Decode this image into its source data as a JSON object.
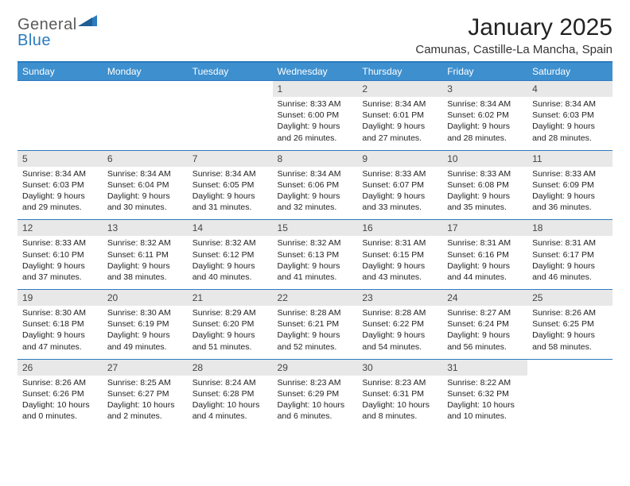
{
  "brand": {
    "part1": "General",
    "part2": "Blue"
  },
  "title": "January 2025",
  "location": "Camunas, Castille-La Mancha, Spain",
  "colors": {
    "header_bg": "#3d8fce",
    "header_text": "#ffffff",
    "rule": "#2b7bbf",
    "daynum_bg": "#e8e8e8",
    "body_bg": "#ffffff",
    "text": "#222222",
    "logo_gray": "#5a5a5a",
    "logo_blue": "#2b7bbf"
  },
  "typography": {
    "title_fontsize": 30,
    "location_fontsize": 15,
    "weekday_fontsize": 12,
    "daynum_fontsize": 12,
    "cell_fontsize": 10.5
  },
  "weekdays": [
    "Sunday",
    "Monday",
    "Tuesday",
    "Wednesday",
    "Thursday",
    "Friday",
    "Saturday"
  ],
  "weeks": [
    [
      null,
      null,
      null,
      {
        "n": "1",
        "sunrise": "8:33 AM",
        "sunset": "6:00 PM",
        "dayl": "9 hours and 26 minutes."
      },
      {
        "n": "2",
        "sunrise": "8:34 AM",
        "sunset": "6:01 PM",
        "dayl": "9 hours and 27 minutes."
      },
      {
        "n": "3",
        "sunrise": "8:34 AM",
        "sunset": "6:02 PM",
        "dayl": "9 hours and 28 minutes."
      },
      {
        "n": "4",
        "sunrise": "8:34 AM",
        "sunset": "6:03 PM",
        "dayl": "9 hours and 28 minutes."
      }
    ],
    [
      {
        "n": "5",
        "sunrise": "8:34 AM",
        "sunset": "6:03 PM",
        "dayl": "9 hours and 29 minutes."
      },
      {
        "n": "6",
        "sunrise": "8:34 AM",
        "sunset": "6:04 PM",
        "dayl": "9 hours and 30 minutes."
      },
      {
        "n": "7",
        "sunrise": "8:34 AM",
        "sunset": "6:05 PM",
        "dayl": "9 hours and 31 minutes."
      },
      {
        "n": "8",
        "sunrise": "8:34 AM",
        "sunset": "6:06 PM",
        "dayl": "9 hours and 32 minutes."
      },
      {
        "n": "9",
        "sunrise": "8:33 AM",
        "sunset": "6:07 PM",
        "dayl": "9 hours and 33 minutes."
      },
      {
        "n": "10",
        "sunrise": "8:33 AM",
        "sunset": "6:08 PM",
        "dayl": "9 hours and 35 minutes."
      },
      {
        "n": "11",
        "sunrise": "8:33 AM",
        "sunset": "6:09 PM",
        "dayl": "9 hours and 36 minutes."
      }
    ],
    [
      {
        "n": "12",
        "sunrise": "8:33 AM",
        "sunset": "6:10 PM",
        "dayl": "9 hours and 37 minutes."
      },
      {
        "n": "13",
        "sunrise": "8:32 AM",
        "sunset": "6:11 PM",
        "dayl": "9 hours and 38 minutes."
      },
      {
        "n": "14",
        "sunrise": "8:32 AM",
        "sunset": "6:12 PM",
        "dayl": "9 hours and 40 minutes."
      },
      {
        "n": "15",
        "sunrise": "8:32 AM",
        "sunset": "6:13 PM",
        "dayl": "9 hours and 41 minutes."
      },
      {
        "n": "16",
        "sunrise": "8:31 AM",
        "sunset": "6:15 PM",
        "dayl": "9 hours and 43 minutes."
      },
      {
        "n": "17",
        "sunrise": "8:31 AM",
        "sunset": "6:16 PM",
        "dayl": "9 hours and 44 minutes."
      },
      {
        "n": "18",
        "sunrise": "8:31 AM",
        "sunset": "6:17 PM",
        "dayl": "9 hours and 46 minutes."
      }
    ],
    [
      {
        "n": "19",
        "sunrise": "8:30 AM",
        "sunset": "6:18 PM",
        "dayl": "9 hours and 47 minutes."
      },
      {
        "n": "20",
        "sunrise": "8:30 AM",
        "sunset": "6:19 PM",
        "dayl": "9 hours and 49 minutes."
      },
      {
        "n": "21",
        "sunrise": "8:29 AM",
        "sunset": "6:20 PM",
        "dayl": "9 hours and 51 minutes."
      },
      {
        "n": "22",
        "sunrise": "8:28 AM",
        "sunset": "6:21 PM",
        "dayl": "9 hours and 52 minutes."
      },
      {
        "n": "23",
        "sunrise": "8:28 AM",
        "sunset": "6:22 PM",
        "dayl": "9 hours and 54 minutes."
      },
      {
        "n": "24",
        "sunrise": "8:27 AM",
        "sunset": "6:24 PM",
        "dayl": "9 hours and 56 minutes."
      },
      {
        "n": "25",
        "sunrise": "8:26 AM",
        "sunset": "6:25 PM",
        "dayl": "9 hours and 58 minutes."
      }
    ],
    [
      {
        "n": "26",
        "sunrise": "8:26 AM",
        "sunset": "6:26 PM",
        "dayl": "10 hours and 0 minutes."
      },
      {
        "n": "27",
        "sunrise": "8:25 AM",
        "sunset": "6:27 PM",
        "dayl": "10 hours and 2 minutes."
      },
      {
        "n": "28",
        "sunrise": "8:24 AM",
        "sunset": "6:28 PM",
        "dayl": "10 hours and 4 minutes."
      },
      {
        "n": "29",
        "sunrise": "8:23 AM",
        "sunset": "6:29 PM",
        "dayl": "10 hours and 6 minutes."
      },
      {
        "n": "30",
        "sunrise": "8:23 AM",
        "sunset": "6:31 PM",
        "dayl": "10 hours and 8 minutes."
      },
      {
        "n": "31",
        "sunrise": "8:22 AM",
        "sunset": "6:32 PM",
        "dayl": "10 hours and 10 minutes."
      },
      null
    ]
  ]
}
